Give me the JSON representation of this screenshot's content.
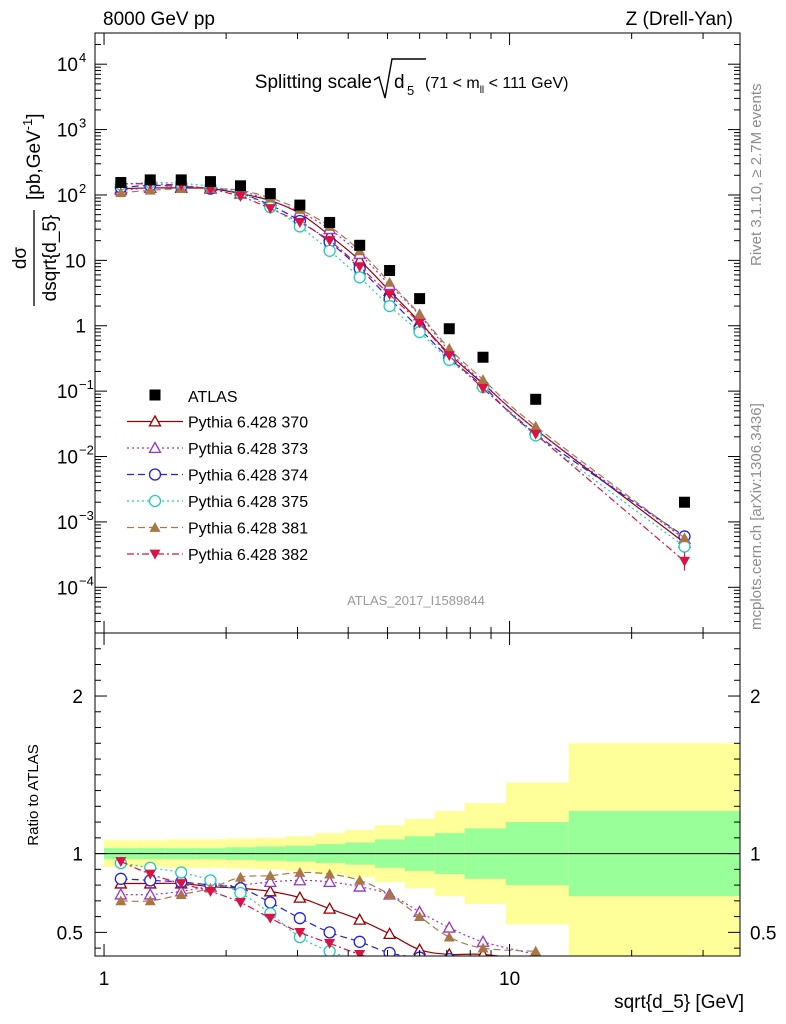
{
  "header": {
    "left": "8000 GeV pp",
    "right": "Z (Drell-Yan)"
  },
  "side_labels": {
    "rivet": "Rivet 3.1.10, ≥ 2.7M events",
    "mcplots": "mcplots.cern.ch [arXiv:1306.3436]"
  },
  "chart_data": [
    {
      "type": "scatter",
      "title": "Splitting scale",
      "title_symbol": "d",
      "title_sub": "5",
      "title_cut": "(71 < m",
      "title_cut_sub": "ll",
      "title_cut_end": " < 111 GeV)",
      "ylabel_num": "dσ",
      "ylabel_den": "dsqrt{d_5}",
      "ylabel_unit": "[pb,GeV",
      "ylabel_unit_sup": "-1",
      "ylabel_unit_end": "]",
      "yscale": "log",
      "xscale": "log",
      "xlim": [
        0.95,
        37
      ],
      "ylim": [
        2e-05,
        30000
      ],
      "yticks": [
        {
          "v": 10000,
          "base": "10",
          "exp": "4"
        },
        {
          "v": 1000,
          "base": "10",
          "exp": "3"
        },
        {
          "v": 100,
          "base": "10",
          "exp": "2"
        },
        {
          "v": 10,
          "base": "10",
          "exp": ""
        },
        {
          "v": 1,
          "base": "1",
          "exp": ""
        },
        {
          "v": 0.1,
          "base": "10",
          "exp": "−1"
        },
        {
          "v": 0.01,
          "base": "10",
          "exp": "−2"
        },
        {
          "v": 0.001,
          "base": "10",
          "exp": "−3"
        },
        {
          "v": 0.0001,
          "base": "10",
          "exp": "−4"
        }
      ],
      "legend_position": "left",
      "watermark": "ATLAS_2017_I1589844",
      "data": {
        "name": "ATLAS",
        "x": [
          1.1,
          1.3,
          1.55,
          1.83,
          2.17,
          2.57,
          3.04,
          3.6,
          4.27,
          5.06,
          6.0,
          7.1,
          8.6,
          11.6,
          27.0
        ],
        "y": [
          155,
          170,
          170,
          160,
          138,
          105,
          70,
          38,
          17,
          7.0,
          2.6,
          0.9,
          0.33,
          0.075,
          0.002
        ]
      },
      "series": [
        {
          "name": "Pythia 6.428 370",
          "color": "#990000",
          "marker": "triangle-open",
          "dash": "",
          "y": [
            125,
            128,
            128,
            125,
            105,
            82,
            52,
            24,
            10,
            3.4,
            1.15,
            0.37,
            0.13,
            0.026,
            0.00048
          ]
        },
        {
          "name": "Pythia 6.428 373",
          "color": "#9933cc",
          "marker": "triangle-open",
          "dash": "2,3",
          "y": [
            118,
            128,
            132,
            128,
            115,
            82,
            55,
            30,
            12.5,
            4.2,
            1.45,
            0.41,
            0.135,
            0.026,
            0.00055
          ]
        },
        {
          "name": "Pythia 6.428 374",
          "color": "#2222dd",
          "marker": "circle-open",
          "dash": "7,4",
          "y": [
            130,
            140,
            135,
            125,
            105,
            70,
            40,
            19,
            7.5,
            2.6,
            0.9,
            0.32,
            0.12,
            0.022,
            0.0006
          ]
        },
        {
          "name": "Pythia 6.428 375",
          "color": "#22ccbb",
          "marker": "circle-open",
          "dash": "2,3",
          "y": [
            145,
            155,
            150,
            135,
            105,
            65,
            33,
            14,
            5.5,
            2.0,
            0.8,
            0.3,
            0.115,
            0.021,
            0.00042
          ]
        },
        {
          "name": "Pythia 6.428 381",
          "color": "#aa7744",
          "marker": "triangle-filled",
          "dash": "7,4",
          "y": [
            108,
            118,
            125,
            125,
            118,
            90,
            60,
            33,
            14,
            4.6,
            1.5,
            0.45,
            0.15,
            0.029,
            0.00057
          ]
        },
        {
          "name": "Pythia 6.428 382",
          "color": "#dd1144",
          "marker": "triangle-down-filled",
          "dash": "7,3,2,3",
          "y": [
            148,
            148,
            140,
            122,
            95,
            62,
            38,
            20,
            8,
            3.0,
            1.1,
            0.35,
            0.11,
            0.022,
            0.00025
          ]
        }
      ]
    },
    {
      "type": "line",
      "ylabel": "Ratio to ATLAS",
      "xlabel": "sqrt{d_5} [GeV]",
      "ylim": [
        0.35,
        2.4
      ],
      "xticks": [
        {
          "v": 1,
          "label": "1"
        },
        {
          "v": 10,
          "label": "10"
        }
      ],
      "yticks_left": [
        {
          "v": 2,
          "label": "2"
        },
        {
          "v": 1,
          "label": "1"
        },
        {
          "v": 0.5,
          "label": "0.5"
        }
      ],
      "yticks_right": [
        {
          "v": 2,
          "label": "2"
        },
        {
          "v": 1,
          "label": "1"
        },
        {
          "v": 0.5,
          "label": "0.5"
        }
      ],
      "band_colors": {
        "inner": "#99ff99",
        "outer": "#ffff99"
      },
      "bins": [
        {
          "lo": 1.0,
          "hi": 1.2,
          "inner": 0.035,
          "outer": 0.085
        },
        {
          "lo": 1.2,
          "hi": 1.42,
          "inner": 0.035,
          "outer": 0.085
        },
        {
          "lo": 1.42,
          "hi": 1.68,
          "inner": 0.035,
          "outer": 0.09
        },
        {
          "lo": 1.68,
          "hi": 1.99,
          "inner": 0.035,
          "outer": 0.09
        },
        {
          "lo": 1.99,
          "hi": 2.36,
          "inner": 0.04,
          "outer": 0.095
        },
        {
          "lo": 2.36,
          "hi": 2.8,
          "inner": 0.045,
          "outer": 0.1
        },
        {
          "lo": 2.8,
          "hi": 3.32,
          "inner": 0.05,
          "outer": 0.11
        },
        {
          "lo": 3.32,
          "hi": 3.93,
          "inner": 0.06,
          "outer": 0.13
        },
        {
          "lo": 3.93,
          "hi": 4.66,
          "inner": 0.07,
          "outer": 0.15
        },
        {
          "lo": 4.66,
          "hi": 5.52,
          "inner": 0.09,
          "outer": 0.18
        },
        {
          "lo": 5.52,
          "hi": 6.54,
          "inner": 0.11,
          "outer": 0.22
        },
        {
          "lo": 6.54,
          "hi": 7.75,
          "inner": 0.13,
          "outer": 0.27
        },
        {
          "lo": 7.75,
          "hi": 9.8,
          "inner": 0.16,
          "outer": 0.32
        },
        {
          "lo": 9.8,
          "hi": 14.0,
          "inner": 0.2,
          "outer": 0.45
        },
        {
          "lo": 14.0,
          "hi": 37.0,
          "inner": 0.27,
          "outer": 0.7
        }
      ],
      "ratio_series": [
        {
          "name": "Pythia 6.428 370",
          "y": [
            0.81,
            0.81,
            0.81,
            0.79,
            0.78,
            0.76,
            0.72,
            0.65,
            0.58,
            0.49,
            0.39,
            0.36,
            0.36,
            0.32
          ]
        },
        {
          "name": "Pythia 6.428 373",
          "y": [
            0.74,
            0.74,
            0.76,
            0.79,
            0.8,
            0.82,
            0.83,
            0.82,
            0.79,
            0.74,
            0.63,
            0.53,
            0.44,
            0.36
          ]
        },
        {
          "name": "Pythia 6.428 374",
          "y": [
            0.84,
            0.83,
            0.82,
            0.8,
            0.78,
            0.69,
            0.59,
            0.5,
            0.44,
            0.37,
            0.34,
            0.33,
            0.3
          ]
        },
        {
          "name": "Pythia 6.428 375",
          "y": [
            0.94,
            0.91,
            0.88,
            0.83,
            0.75,
            0.62,
            0.47,
            0.38,
            0.32,
            0.28
          ]
        },
        {
          "name": "Pythia 6.428 381",
          "y": [
            0.7,
            0.7,
            0.74,
            0.78,
            0.85,
            0.86,
            0.88,
            0.87,
            0.83,
            0.74,
            0.6,
            0.47,
            0.4,
            0.38
          ]
        },
        {
          "name": "Pythia 6.428 382",
          "y": [
            0.95,
            0.87,
            0.81,
            0.76,
            0.69,
            0.59,
            0.5,
            0.43,
            0.36,
            0.3
          ]
        }
      ]
    }
  ]
}
